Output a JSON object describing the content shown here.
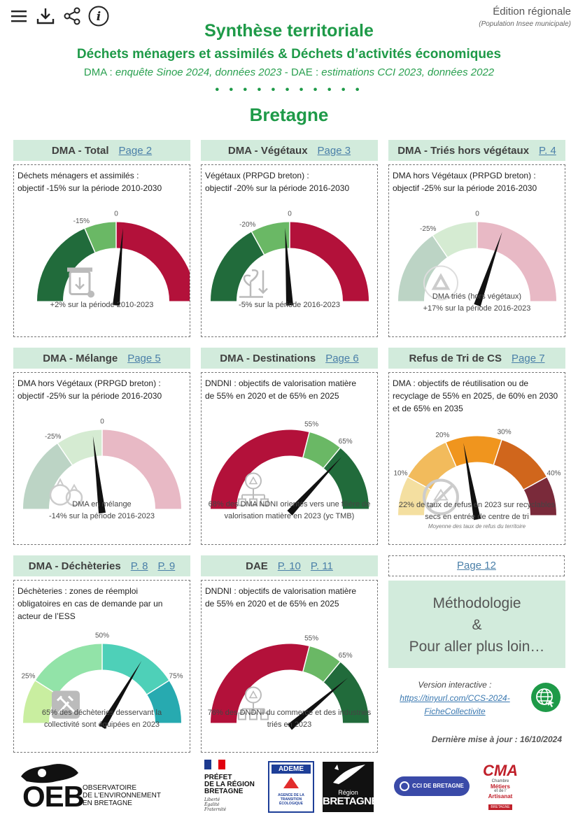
{
  "toolbar": {
    "menu_icon": "hamburger-menu-icon",
    "download_icon": "download-icon",
    "share_icon": "share-icon",
    "info_icon": "info-icon"
  },
  "edition": {
    "title": "Édition régionale",
    "subtitle": "(Population Insee municipale)"
  },
  "header": {
    "title": "Synthèse territoriale",
    "subtitle": "Déchets ménagers et assimilés & Déchets d’activités économiques",
    "source_dma_prefix": "DMA : ",
    "source_dma": "enquête Sinoe 2024, données 2023",
    "source_dae_prefix": " - DAE : ",
    "source_dae": "estimations CCI 2023, données 2022",
    "dots": "• • • • • • • • • • •",
    "region": "Bretagne"
  },
  "colors": {
    "accent_green": "#1e9a48",
    "header_bg": "#d2ebdc",
    "dark_green": "#216b3b",
    "light_green": "#6ab865",
    "dark_red": "#b3113a",
    "link": "#4a7fa8"
  },
  "cards": [
    {
      "name": "DMA - Total",
      "links": [
        "Page 2"
      ],
      "desc": [
        "Déchets ménagers et assimilés :",
        "objectif -15% sur la période 2010-2030"
      ],
      "tick_labels": [
        "-15%",
        "0"
      ],
      "caption": [
        "+2% sur la période 2010-2023"
      ],
      "icon": "trash-bin-icon"
    },
    {
      "name": "DMA - Végétaux",
      "links": [
        "Page 3"
      ],
      "desc": [
        "Végétaux (PRPGD breton) :",
        "objectif -20% sur la période 2016-2030"
      ],
      "tick_labels": [
        "-20%",
        "0"
      ],
      "caption": [
        "-5% sur la période 2016-2023"
      ],
      "icon": "plant-icon"
    },
    {
      "name": "DMA - Triés hors végétaux",
      "links": [
        "P. 4"
      ],
      "desc": [
        "DMA hors Végétaux (PRPGD breton) :",
        "objectif -25% sur la période 2016-2030"
      ],
      "tick_labels": [
        "-25%",
        "0"
      ],
      "caption": [
        "DMA triés (hors végétaux)",
        "+17% sur la période 2016-2023"
      ],
      "icon": "recycle-icon"
    },
    {
      "name": "DMA - Mélange",
      "links": [
        "Page 5"
      ],
      "desc": [
        "DMA hors Végétaux (PRPGD breton) :",
        "objectif -25% sur la période 2016-2030"
      ],
      "tick_labels": [
        "-25%",
        "0"
      ],
      "caption": [
        "DMA en mélange",
        "-14% sur la période 2016-2023"
      ],
      "icon": "garbage-bags-icon"
    },
    {
      "name": "DMA - Destinations",
      "links": [
        "Page 6"
      ],
      "desc": [
        "DNDNI : objectifs de valorisation matière",
        "de 55% en 2020 et de 65% en 2025"
      ],
      "tick_labels": [
        "55%",
        "65%"
      ],
      "caption": [
        "68% des DMA NDNI orientés vers une filière de",
        "valorisation matière en 2023 (yc TMB)"
      ],
      "icon": "recycle-flow-icon"
    },
    {
      "name": "Refus de Tri de CS",
      "links": [
        "Page 7"
      ],
      "desc": [
        "DMA : objectifs de réutilisation ou de",
        "recyclage de 55% en 2025, de 60% en 2030",
        "et de 65% en 2035"
      ],
      "tick_labels": [
        "10%",
        "20%",
        "30%",
        "40%"
      ],
      "caption": [
        "22% de taux de refus en 2023 sur recyclables",
        "secs en entrée de centre de tri"
      ],
      "sub_caption": "Moyenne des taux de refus du territoire",
      "icon": "no-recycle-icon"
    },
    {
      "name": "DMA - Déchèteries",
      "links": [
        "P. 8",
        "P. 9"
      ],
      "desc": [
        "Déchèteries : zones de réemploi",
        "obligatoires en cas de demande par un",
        "acteur de l’ESS"
      ],
      "tick_labels": [
        "25%",
        "50%",
        "75%"
      ],
      "caption": [
        "65% des déchèteries desservant la",
        "collectivité sont équipées en 2023"
      ],
      "icon": "reuse-tools-icon"
    },
    {
      "name": "DAE",
      "links": [
        "P. 10",
        "P. 11"
      ],
      "desc": [
        "DNDNI : objectifs de valorisation matière",
        "de 55% en 2020 et de 65% en 2025"
      ],
      "tick_labels": [
        "55%",
        "65%"
      ],
      "caption": [
        "76% des DNDNI du commerce et des industries",
        "triés en 2023"
      ],
      "icon": "recycle-flow-icon"
    }
  ],
  "gauges": [
    {
      "segments": [
        {
          "color": "#216b3b",
          "to": 0.37
        },
        {
          "color": "#6ab865",
          "to": 0.5
        },
        {
          "color": "#b3113a",
          "to": 1
        }
      ],
      "ticks": [
        0.37,
        0.5
      ],
      "needle": 0.53
    },
    {
      "segments": [
        {
          "color": "#216b3b",
          "to": 0.34
        },
        {
          "color": "#6ab865",
          "to": 0.5
        },
        {
          "color": "#b3113a",
          "to": 1
        }
      ],
      "ticks": [
        0.34,
        0.5
      ],
      "needle": 0.48
    },
    {
      "segments": [
        {
          "color": "#bcd4c5",
          "to": 0.31
        },
        {
          "color": "#d5ebd2",
          "to": 0.5
        },
        {
          "color": "#e8b9c5",
          "to": 1
        }
      ],
      "ticks": [
        0.31,
        0.5
      ],
      "needle": 0.61
    },
    {
      "segments": [
        {
          "color": "#bcd4c5",
          "to": 0.31
        },
        {
          "color": "#d5ebd2",
          "to": 0.5
        },
        {
          "color": "#e8b9c5",
          "to": 1
        }
      ],
      "ticks": [
        0.31,
        0.5
      ],
      "needle": 0.46
    },
    {
      "segments": [
        {
          "color": "#b3113a",
          "to": 0.58
        },
        {
          "color": "#6ab865",
          "to": 0.72
        },
        {
          "color": "#216b3b",
          "to": 1
        }
      ],
      "ticks": [
        0.58,
        0.72
      ],
      "needle": 0.75
    },
    {
      "segments": [
        {
          "color": "#f4dfa0",
          "to": 0.16
        },
        {
          "color": "#f2bb5c",
          "to": 0.37
        },
        {
          "color": "#f0951e",
          "to": 0.6
        },
        {
          "color": "#d0661c",
          "to": 0.84
        },
        {
          "color": "#7a2a3a",
          "to": 1
        }
      ],
      "ticks": [
        0.16,
        0.37,
        0.6,
        0.84
      ],
      "needle": 0.44
    },
    {
      "segments": [
        {
          "color": "#c9eea0",
          "to": 0.18
        },
        {
          "color": "#92e3a8",
          "to": 0.5
        },
        {
          "color": "#4ed0b8",
          "to": 0.82
        },
        {
          "color": "#27aab0",
          "to": 1
        }
      ],
      "ticks": [
        0.18,
        0.5,
        0.82
      ],
      "needle": 0.68
    },
    {
      "segments": [
        {
          "color": "#b3113a",
          "to": 0.58
        },
        {
          "color": "#6ab865",
          "to": 0.72
        },
        {
          "color": "#216b3b",
          "to": 1
        }
      ],
      "ticks": [
        0.58,
        0.72
      ],
      "needle": 0.79
    }
  ],
  "page12": "Page 12",
  "methodology": {
    "line1": "Méthodologie",
    "line2": "&",
    "line3": "Pour aller plus loin…"
  },
  "version": {
    "label": "Version interactive :",
    "url_line1": "https://tinyurl.com/CCS-2024-",
    "url_line2": "FicheCollectivite",
    "icon": "globe-link-icon"
  },
  "last_update": "Dernière mise à jour : 16/10/2024",
  "logos": {
    "oeb": {
      "short": "OEB",
      "lines": [
        "OBSERVATOIRE",
        "DE L'ENVIRONNEMENT",
        "EN BRETAGNE"
      ]
    },
    "prefet": {
      "lines": [
        "PRÉFET",
        "DE LA RÉGION",
        "BRETAGNE"
      ],
      "motto": [
        "Liberté",
        "Égalité",
        "Fraternité"
      ]
    },
    "ademe": {
      "name": "ADEME",
      "lines": [
        "AGENCE DE LA",
        "TRANSITION",
        "ÉCOLOGIQUE"
      ]
    },
    "region": {
      "line1": "Région",
      "line2": "BRETAGNE"
    },
    "cci": {
      "name": "CCI DE BRETAGNE"
    },
    "cma": {
      "name": "CMA",
      "lines": [
        "Chambre",
        "Métiers",
        "et de l'",
        "Artisanat"
      ],
      "sub": "BRETAGNE"
    }
  }
}
